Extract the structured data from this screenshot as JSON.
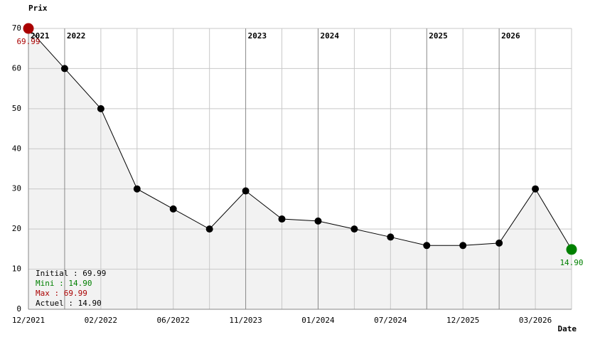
{
  "chart_data": {
    "type": "line",
    "y_label": "Prix",
    "x_label": "Date",
    "categories": [
      "12/2021",
      null,
      "02/2022",
      null,
      "06/2022",
      null,
      "11/2023",
      null,
      "01/2024",
      null,
      "07/2024",
      null,
      "12/2025",
      null,
      "03/2026",
      null
    ],
    "year_labels": [
      "2021",
      "2022",
      null,
      null,
      null,
      null,
      "2023",
      null,
      "2024",
      null,
      null,
      "2025",
      null,
      "2026",
      null,
      null
    ],
    "values": [
      69.99,
      60,
      50,
      30,
      25,
      20,
      29.5,
      22.5,
      22,
      20,
      18,
      15.9,
      15.9,
      16.5,
      30,
      14.9
    ],
    "value_labels": [
      "69.99",
      null,
      null,
      null,
      null,
      null,
      null,
      null,
      null,
      null,
      null,
      null,
      null,
      null,
      null,
      "14.90"
    ],
    "color": "#000000",
    "max_color": "#aa0000",
    "min_color": "#008000",
    "area_color": "#f2f2f2",
    "ylim": [
      0,
      70
    ],
    "yticks": [
      0,
      10,
      20,
      30,
      40,
      50,
      60,
      70
    ],
    "grid": true,
    "stats": [
      "Initial : 69.99",
      "Mini : 14.90",
      "Max : 69.99",
      "Actuel : 14.90"
    ],
    "stats_colors": [
      "#000000",
      "#008000",
      "#aa0000",
      "#000000"
    ]
  }
}
